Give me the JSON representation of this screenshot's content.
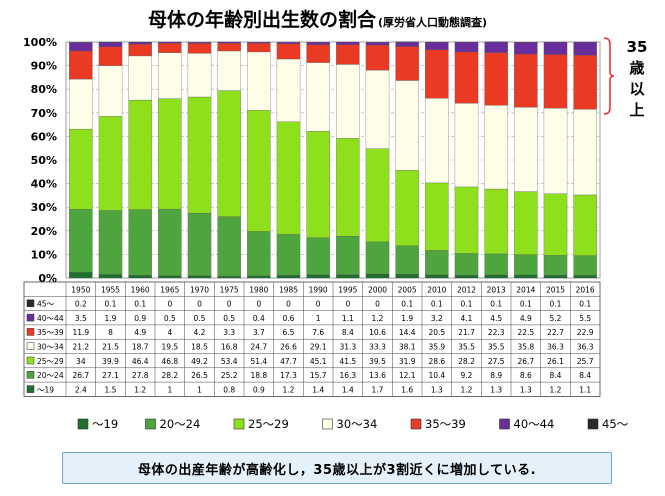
{
  "chart_data": {
    "type": "bar",
    "stacked": true,
    "normalized": true,
    "title": "母体の年齢別出生数の割合",
    "subtitle": "(厚労省人口動態調査)",
    "categories": [
      "1950",
      "1955",
      "1960",
      "1965",
      "1970",
      "1975",
      "1980",
      "1985",
      "1990",
      "1995",
      "2000",
      "2005",
      "2010",
      "2012",
      "2013",
      "2014",
      "2015",
      "2016"
    ],
    "ylim": [
      0,
      100
    ],
    "yticks": [
      "0%",
      "10%",
      "20%",
      "30%",
      "40%",
      "50%",
      "60%",
      "70%",
      "80%",
      "90%",
      "100%"
    ],
    "series": [
      {
        "name": "〜19",
        "color": "#1e6f2e",
        "values": [
          2.4,
          1.5,
          1.2,
          1,
          1,
          0.8,
          0.9,
          1.2,
          1.4,
          1.4,
          1.7,
          1.6,
          1.3,
          1.2,
          1.3,
          1.3,
          1.2,
          1.1
        ]
      },
      {
        "name": "20〜24",
        "color": "#4ea53e",
        "values": [
          26.7,
          27.1,
          27.8,
          28.2,
          26.5,
          25.2,
          18.8,
          17.3,
          15.7,
          16.3,
          13.6,
          12.1,
          10.4,
          9.2,
          8.9,
          8.6,
          8.4,
          8.4
        ]
      },
      {
        "name": "25〜29",
        "color": "#8fe01c",
        "values": [
          34,
          39.9,
          46.4,
          46.8,
          49.2,
          53.4,
          51.4,
          47.7,
          45.1,
          41.5,
          39.5,
          31.9,
          28.6,
          28.2,
          27.5,
          26.7,
          26.1,
          25.7
        ]
      },
      {
        "name": "30〜34",
        "color": "#fdfde8",
        "values": [
          21.2,
          21.5,
          18.7,
          19.5,
          18.5,
          16.8,
          24.7,
          26.6,
          29.1,
          31.3,
          33.3,
          38.1,
          35.9,
          35.5,
          35.5,
          35.8,
          36.3,
          36.3
        ]
      },
      {
        "name": "35〜39",
        "color": "#ea3a24",
        "values": [
          11.9,
          8,
          4.9,
          4,
          4.2,
          3.3,
          3.7,
          6.5,
          7.6,
          8.4,
          10.6,
          14.4,
          20.5,
          21.7,
          22.3,
          22.5,
          22.7,
          22.9
        ]
      },
      {
        "name": "40〜44",
        "color": "#6a2e9c",
        "values": [
          3.5,
          1.9,
          0.9,
          0.5,
          0.5,
          0.5,
          0.4,
          0.6,
          1,
          1.1,
          1.2,
          1.9,
          3.2,
          4.1,
          4.5,
          4.9,
          5.2,
          5.5
        ]
      },
      {
        "name": "45〜",
        "color": "#2a2a2a",
        "values": [
          0.2,
          0.1,
          0.1,
          0,
          0,
          0,
          0,
          0,
          0,
          0,
          0,
          0.1,
          0.1,
          0.1,
          0.1,
          0.1,
          0.1,
          0.1
        ]
      }
    ],
    "annotation": {
      "text": "35歳以上",
      "lines": [
        "35",
        "歳",
        "以",
        "上"
      ]
    },
    "legend_position": "bottom"
  },
  "footer_note": "母体の出産年齢が高齢化し，35歳以上が3割近くに増加している."
}
